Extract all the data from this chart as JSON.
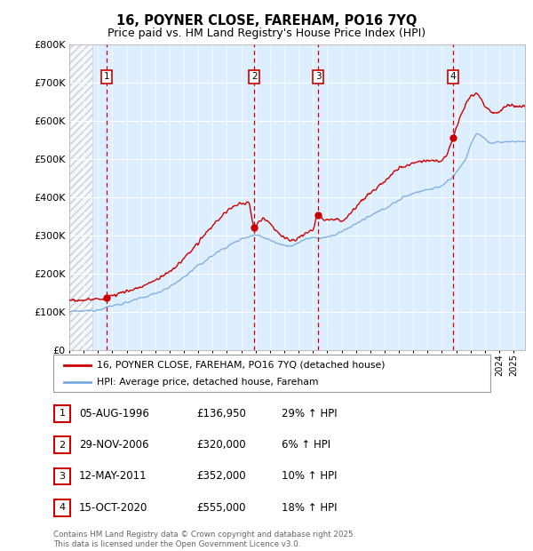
{
  "title": "16, POYNER CLOSE, FAREHAM, PO16 7YQ",
  "subtitle": "Price paid vs. HM Land Registry's House Price Index (HPI)",
  "ylim": [
    0,
    800000
  ],
  "yticks": [
    0,
    100000,
    200000,
    300000,
    400000,
    500000,
    600000,
    700000,
    800000
  ],
  "ytick_labels": [
    "£0",
    "£100K",
    "£200K",
    "£300K",
    "£400K",
    "£500K",
    "£600K",
    "£700K",
    "£800K"
  ],
  "xlim_start": 1994.0,
  "xlim_end": 2025.8,
  "background_color": "#ddeeff",
  "hatched_region_end": 1995.6,
  "sale_events": [
    {
      "num": 1,
      "date_label": "05-AUG-1996",
      "date_x": 1996.6,
      "price": 136950,
      "price_label": "£136,950",
      "hpi_diff": "29% ↑ HPI"
    },
    {
      "num": 2,
      "date_label": "29-NOV-2006",
      "date_x": 2006.9,
      "price": 320000,
      "price_label": "£320,000",
      "hpi_diff": "6% ↑ HPI"
    },
    {
      "num": 3,
      "date_label": "12-MAY-2011",
      "date_x": 2011.37,
      "price": 352000,
      "price_label": "£352,000",
      "hpi_diff": "10% ↑ HPI"
    },
    {
      "num": 4,
      "date_label": "15-OCT-2020",
      "date_x": 2020.79,
      "price": 555000,
      "price_label": "£555,000",
      "hpi_diff": "18% ↑ HPI"
    }
  ],
  "legend_label_red": "16, POYNER CLOSE, FAREHAM, PO16 7YQ (detached house)",
  "legend_label_blue": "HPI: Average price, detached house, Fareham",
  "footer_text": "Contains HM Land Registry data © Crown copyright and database right 2025.\nThis data is licensed under the Open Government Licence v3.0.",
  "red_color": "#cc0000",
  "blue_color": "#7aaadd",
  "grid_color": "#ffffff",
  "title_fontsize": 10.5,
  "subtitle_fontsize": 9
}
